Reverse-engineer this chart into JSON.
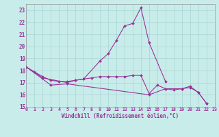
{
  "xlabel": "Windchill (Refroidissement éolien,°C)",
  "bg_color": "#c8ecea",
  "grid_color": "#a8d4d2",
  "line_color": "#993399",
  "xlim": [
    0,
    23
  ],
  "ylim": [
    15,
    23.5
  ],
  "yticks": [
    15,
    16,
    17,
    18,
    19,
    20,
    21,
    22,
    23
  ],
  "xtick_labels": [
    "0",
    "1",
    "2",
    "3",
    "4",
    "5",
    "6",
    "7",
    "8",
    "9",
    "10",
    "11",
    "12",
    "13",
    "14",
    "15",
    "16",
    "17",
    "18",
    "19",
    "20",
    "21",
    "22",
    "23"
  ],
  "series1_x": [
    0,
    1,
    2,
    3,
    4,
    5,
    6,
    7,
    8,
    9,
    10,
    11,
    12,
    13,
    14,
    15,
    16,
    17,
    18,
    19,
    20,
    21,
    22
  ],
  "series1_y": [
    18.3,
    17.9,
    17.5,
    17.2,
    17.1,
    17.1,
    17.2,
    17.3,
    17.4,
    17.5,
    17.5,
    17.5,
    17.5,
    17.6,
    17.6,
    16.1,
    16.8,
    16.5,
    16.4,
    16.5,
    16.6,
    16.2,
    15.3
  ],
  "series2_x": [
    0,
    2,
    5,
    6,
    7,
    9,
    10,
    11,
    12,
    13,
    14,
    15,
    17
  ],
  "series2_y": [
    18.3,
    17.4,
    17.0,
    17.2,
    17.3,
    18.8,
    19.4,
    20.5,
    21.7,
    21.9,
    23.2,
    20.3,
    17.1
  ],
  "series3_x": [
    0,
    3,
    5,
    15,
    17,
    19,
    20,
    21,
    22
  ],
  "series3_y": [
    18.3,
    16.8,
    16.9,
    16.0,
    16.5,
    16.5,
    16.7,
    16.2,
    15.3
  ]
}
